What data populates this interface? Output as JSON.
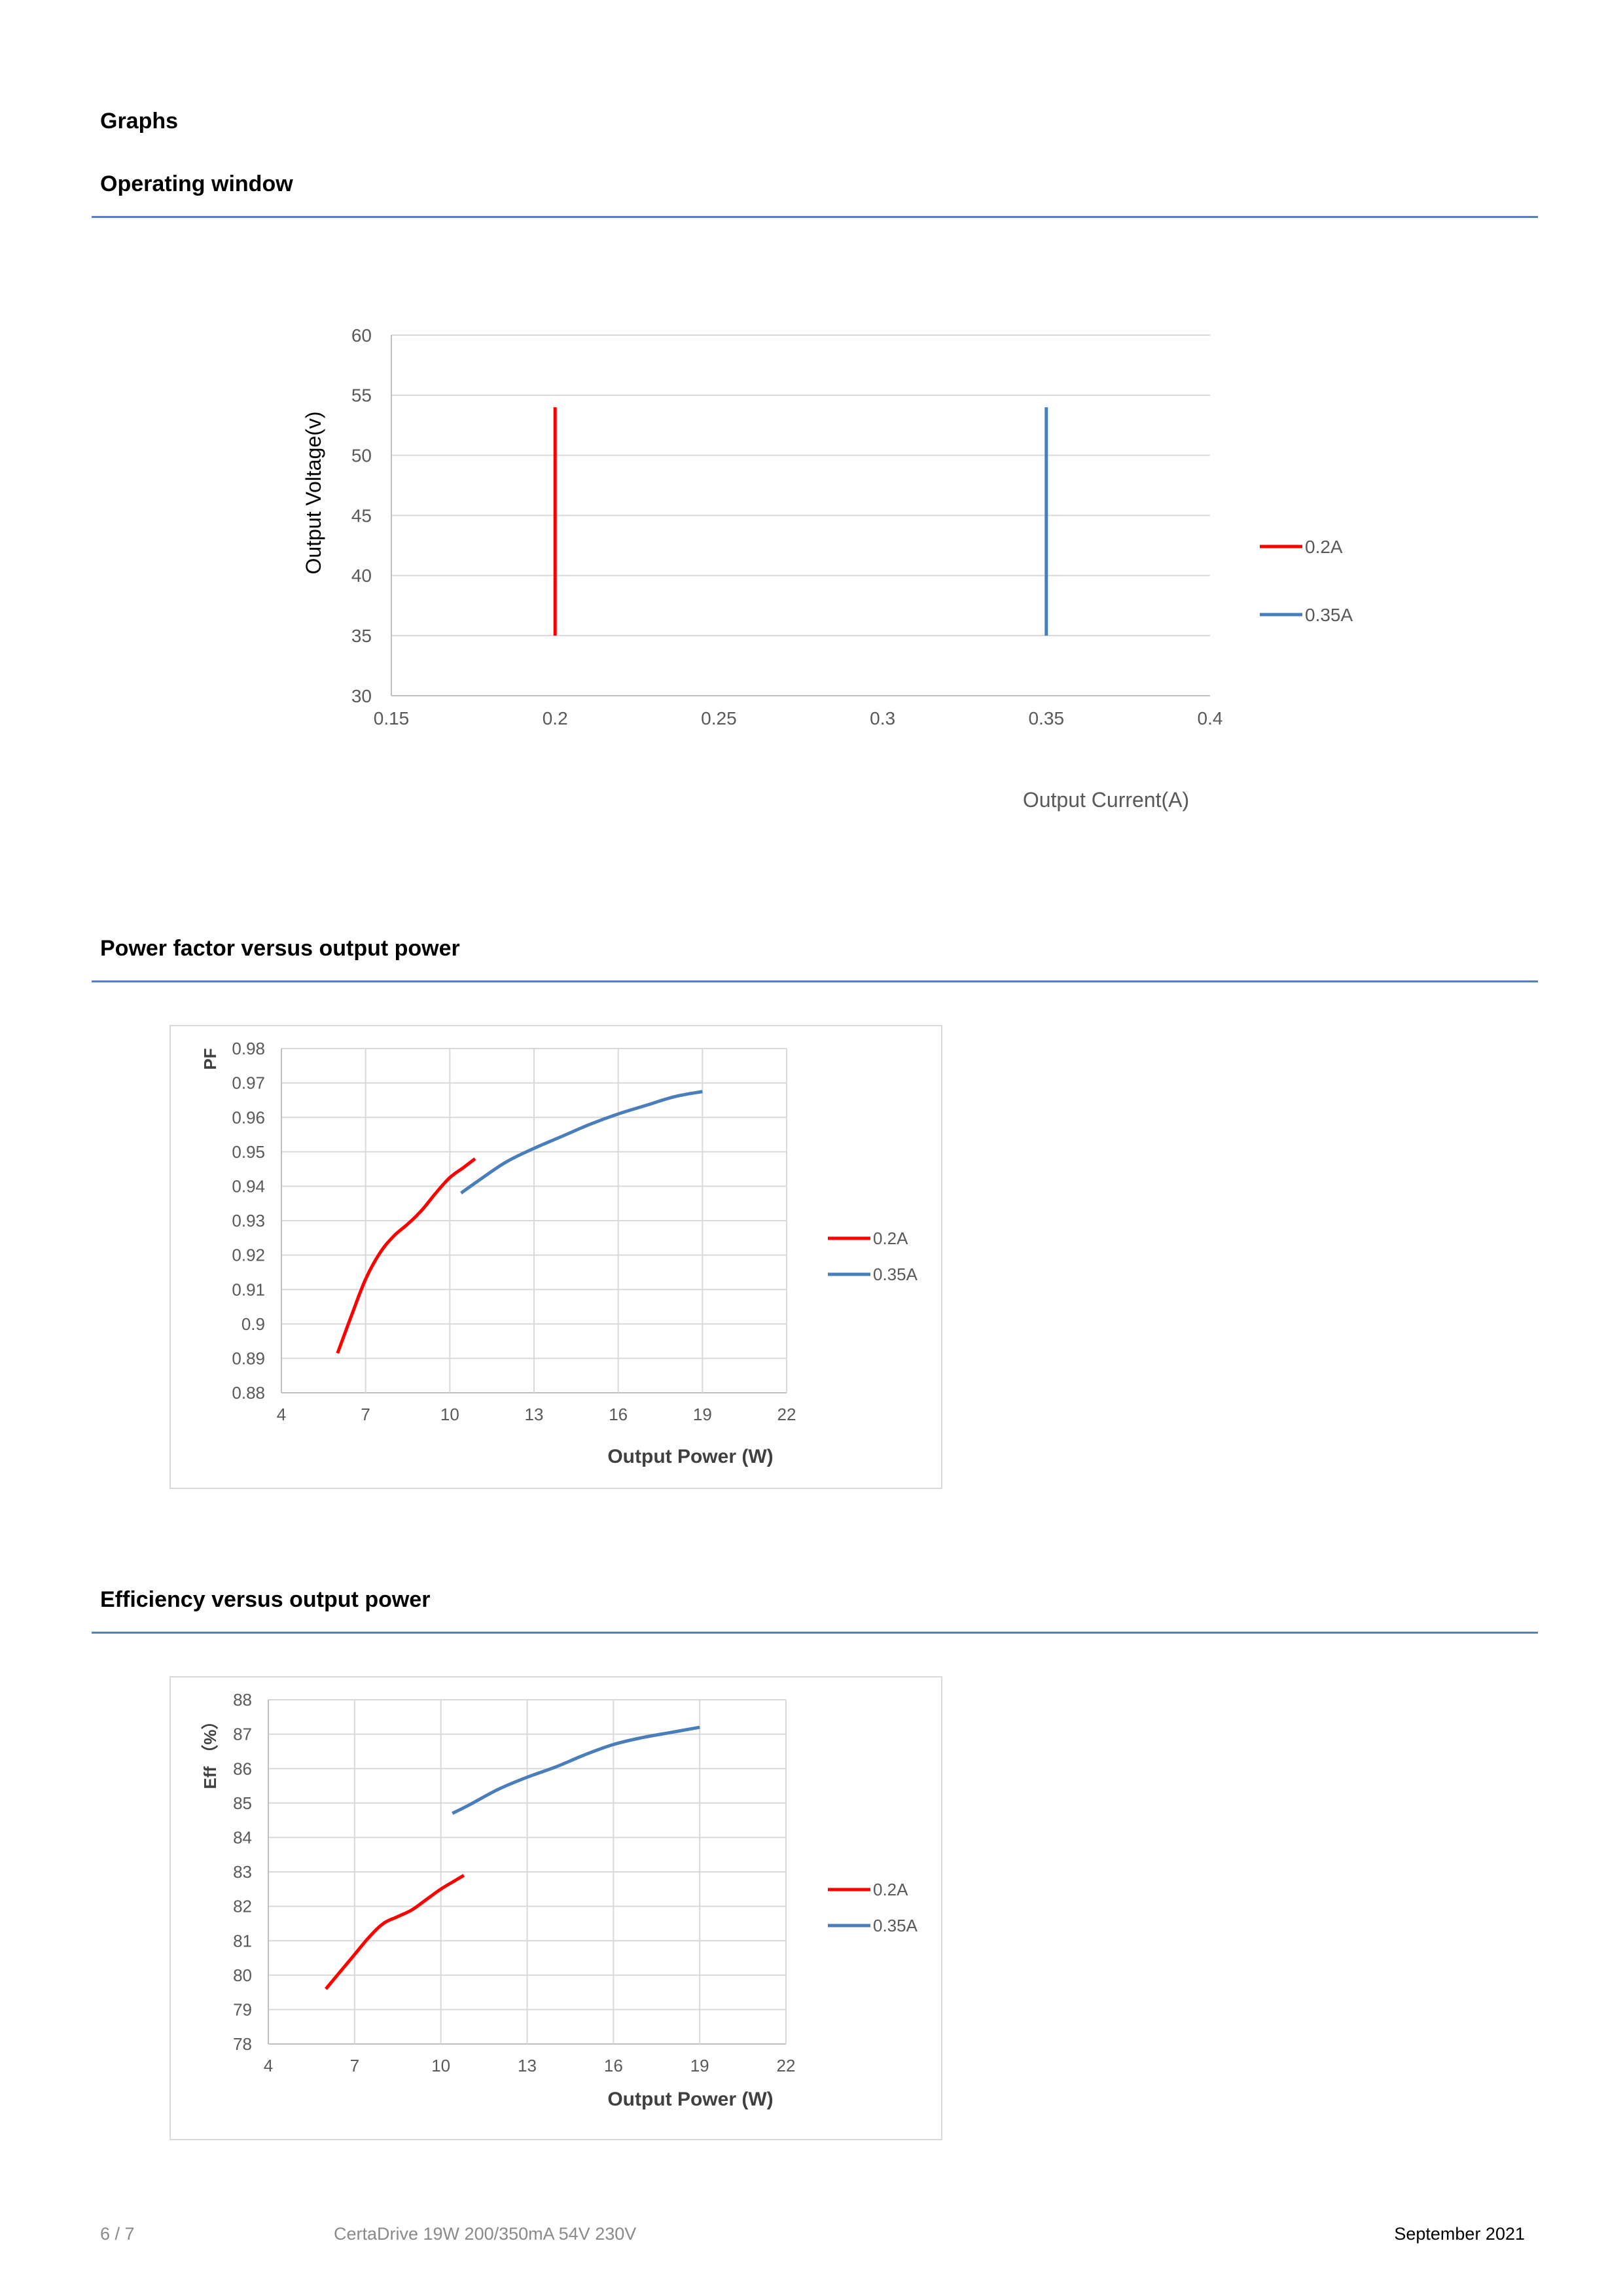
{
  "page": {
    "heading": "Graphs",
    "footer": {
      "page_number": "6 / 7",
      "product": "CertaDrive 19W 200/350mA 54V 230V",
      "date": "September 2021"
    }
  },
  "sections": [
    {
      "title": "Operating window"
    },
    {
      "title": "Power factor versus output power"
    },
    {
      "title": "Efficiency versus output power"
    }
  ],
  "colors": {
    "series_0_2A": "#ff0000",
    "series_0_35A": "#4a7ebb",
    "rule": "#4f81bd",
    "grid": "#d9d9d9"
  },
  "chart_data": [
    {
      "type": "line",
      "title": "",
      "xlabel": "Output Current(A)",
      "ylabel": "Output Voltage(v)",
      "xlim": [
        0.15,
        0.4
      ],
      "ylim": [
        30,
        60
      ],
      "xticks": [
        0.15,
        0.2,
        0.25,
        0.3,
        0.35,
        0.4
      ],
      "yticks": [
        30,
        35,
        40,
        45,
        50,
        55,
        60
      ],
      "xtick_labels": [
        "0.15",
        "0.2",
        "0.25",
        "0.3",
        "0.35",
        "0.4"
      ],
      "ytick_labels": [
        "30",
        "35",
        "40",
        "45",
        "50",
        "55",
        "60"
      ],
      "grid": "horizontal",
      "legend": "right",
      "frame": false,
      "series": [
        {
          "name": "0.2A",
          "color": "#ff0000",
          "x": [
            0.2,
            0.2
          ],
          "y": [
            35,
            54
          ]
        },
        {
          "name": "0.35A",
          "color": "#4a7ebb",
          "x": [
            0.35,
            0.35
          ],
          "y": [
            35,
            54
          ]
        }
      ]
    },
    {
      "type": "line",
      "title": "",
      "xlabel": "Output Power (W)",
      "ylabel": "PF",
      "xlim": [
        4,
        22
      ],
      "ylim": [
        0.88,
        0.98
      ],
      "xticks": [
        4,
        7,
        10,
        13,
        16,
        19,
        22
      ],
      "yticks": [
        0.88,
        0.89,
        0.9,
        0.91,
        0.92,
        0.93,
        0.94,
        0.95,
        0.96,
        0.97,
        0.98
      ],
      "xtick_labels": [
        "4",
        "7",
        "10",
        "13",
        "16",
        "19",
        "22"
      ],
      "ytick_labels": [
        "0.88",
        "0.89",
        "0.9",
        "0.91",
        "0.92",
        "0.93",
        "0.94",
        "0.95",
        "0.96",
        "0.97",
        "0.98"
      ],
      "grid": "both",
      "legend": "right",
      "frame": true,
      "series": [
        {
          "name": "0.2A",
          "color": "#ff0000",
          "x": [
            6.0,
            6.5,
            7.0,
            7.5,
            8.0,
            8.5,
            9.0,
            9.5,
            10.0,
            10.5,
            10.9
          ],
          "y": [
            0.8915,
            0.9025,
            0.913,
            0.9205,
            0.9255,
            0.929,
            0.933,
            0.938,
            0.9425,
            0.9455,
            0.948
          ]
        },
        {
          "name": "0.35A",
          "color": "#4a7ebb",
          "x": [
            10.4,
            11.0,
            12.0,
            13.0,
            14.0,
            15.0,
            16.0,
            17.0,
            18.0,
            19.0
          ],
          "y": [
            0.938,
            0.9415,
            0.947,
            0.951,
            0.9545,
            0.958,
            0.961,
            0.9635,
            0.966,
            0.9675
          ]
        }
      ]
    },
    {
      "type": "line",
      "title": "",
      "xlabel": "Output Power (W)",
      "ylabel": "Eff （%）",
      "xlim": [
        4,
        22
      ],
      "ylim": [
        78,
        88
      ],
      "xticks": [
        4,
        7,
        10,
        13,
        16,
        19,
        22
      ],
      "yticks": [
        78,
        79,
        80,
        81,
        82,
        83,
        84,
        85,
        86,
        87,
        88
      ],
      "xtick_labels": [
        "4",
        "7",
        "10",
        "13",
        "16",
        "19",
        "22"
      ],
      "ytick_labels": [
        "78",
        "79",
        "80",
        "81",
        "82",
        "83",
        "84",
        "85",
        "86",
        "87",
        "88"
      ],
      "grid": "both",
      "legend": "right",
      "frame": true,
      "series": [
        {
          "name": "0.2A",
          "color": "#ff0000",
          "x": [
            6.0,
            6.5,
            7.0,
            7.5,
            8.0,
            8.5,
            9.0,
            9.5,
            10.0,
            10.5,
            10.8
          ],
          "y": [
            79.6,
            80.1,
            80.6,
            81.1,
            81.5,
            81.7,
            81.9,
            82.2,
            82.5,
            82.75,
            82.9
          ]
        },
        {
          "name": "0.35A",
          "color": "#4a7ebb",
          "x": [
            10.4,
            11.0,
            12.0,
            13.0,
            14.0,
            15.0,
            16.0,
            17.0,
            18.0,
            19.0
          ],
          "y": [
            84.7,
            84.95,
            85.4,
            85.75,
            86.05,
            86.4,
            86.7,
            86.9,
            87.05,
            87.2
          ]
        }
      ]
    }
  ]
}
